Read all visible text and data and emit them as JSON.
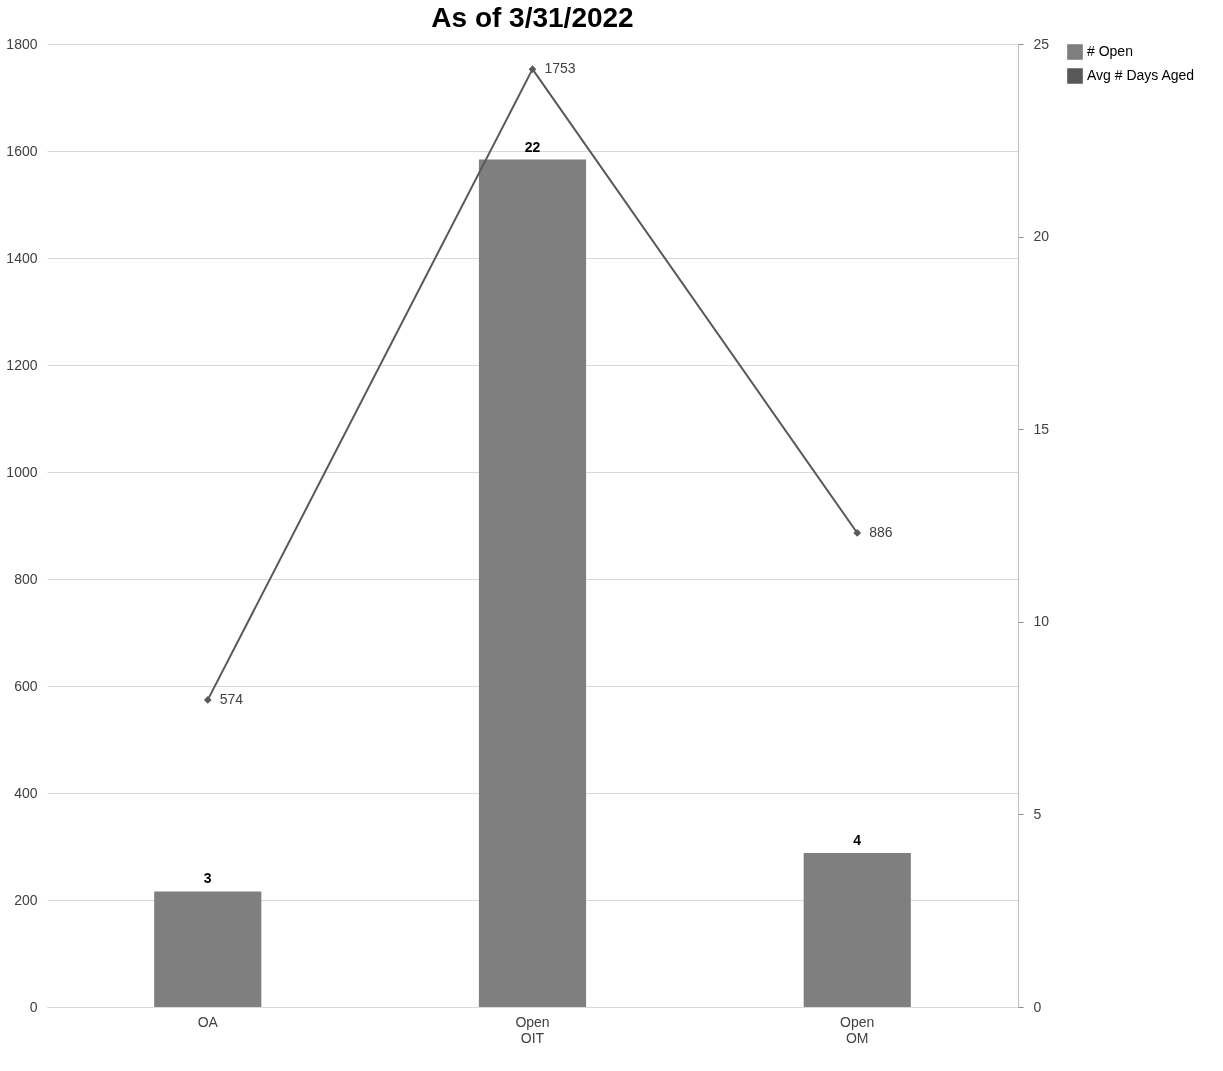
{
  "chart_data": {
    "type": "bar",
    "title": "As of 3/31/2022",
    "categories": [
      "OA",
      "Open\nOIT",
      "Open\nOM"
    ],
    "series": [
      {
        "name": "# Open",
        "axis": "y2",
        "color": "#7f7f7f",
        "values": [
          3,
          22,
          4
        ]
      },
      {
        "name": "Avg # Days Aged",
        "type": "line",
        "axis": "y",
        "color": "#595959",
        "marker": "diamond",
        "values": [
          574,
          1753,
          886
        ]
      }
    ],
    "ylim": [
      0,
      1800
    ],
    "yticks": [
      0,
      200,
      400,
      600,
      800,
      1000,
      1200,
      1400,
      1600,
      1800
    ],
    "y2lim": [
      0,
      25
    ],
    "y2ticks": [
      0,
      5,
      10,
      15,
      20,
      25
    ],
    "grid": "y",
    "legend": "right",
    "data_labels": true
  }
}
